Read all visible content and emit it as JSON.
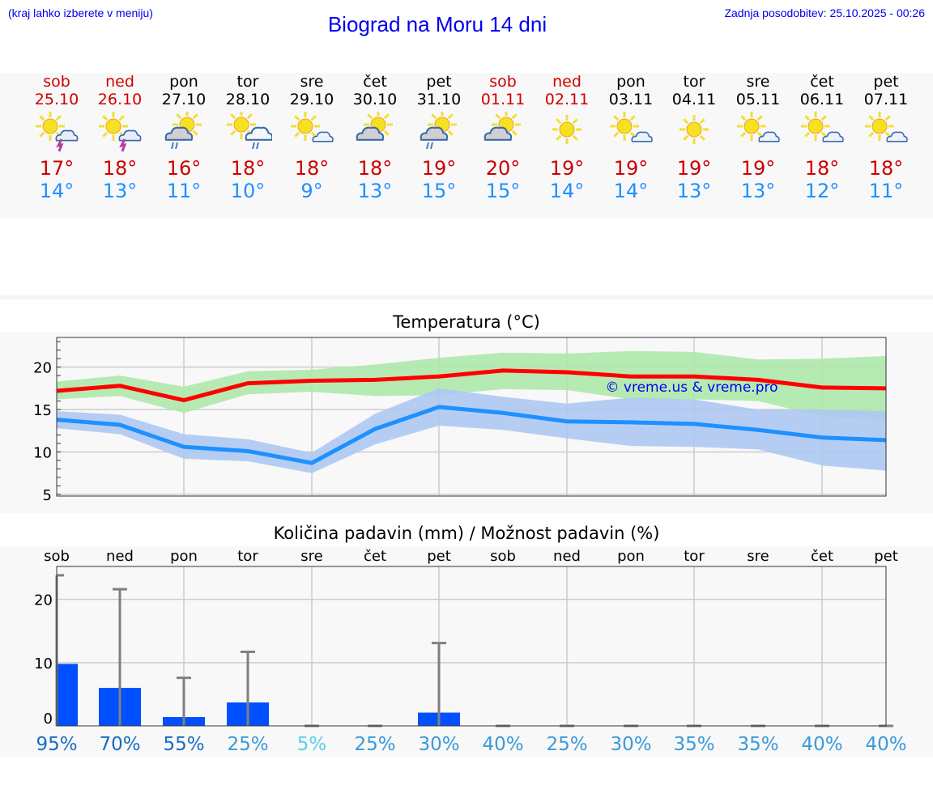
{
  "header": {
    "hint": "(kraj lahko izberete v meniju)",
    "title": "Biograd na Moru 14 dni",
    "updated": "Zadnja posodobitev: 25.10.2025 - 00:26"
  },
  "days": [
    {
      "name": "sob",
      "date": "25.10",
      "weekend": true,
      "icon": "sun-thunder-icon",
      "max": "17°",
      "min": "14°"
    },
    {
      "name": "ned",
      "date": "26.10",
      "weekend": true,
      "icon": "sun-thunder-icon",
      "max": "18°",
      "min": "13°"
    },
    {
      "name": "pon",
      "date": "27.10",
      "weekend": false,
      "icon": "cloud-rain-sun-icon",
      "max": "16°",
      "min": "11°"
    },
    {
      "name": "tor",
      "date": "28.10",
      "weekend": false,
      "icon": "sun-cloud-rain-icon",
      "max": "18°",
      "min": "10°"
    },
    {
      "name": "sre",
      "date": "29.10",
      "weekend": false,
      "icon": "sun-small-cloud-icon",
      "max": "18°",
      "min": "9°"
    },
    {
      "name": "čet",
      "date": "30.10",
      "weekend": false,
      "icon": "cloud-sun-icon",
      "max": "18°",
      "min": "13°"
    },
    {
      "name": "pet",
      "date": "31.10",
      "weekend": false,
      "icon": "cloud-rain-sun-icon",
      "max": "19°",
      "min": "15°"
    },
    {
      "name": "sob",
      "date": "01.11",
      "weekend": true,
      "icon": "cloud-sun-icon",
      "max": "20°",
      "min": "15°"
    },
    {
      "name": "ned",
      "date": "02.11",
      "weekend": true,
      "icon": "sun-icon",
      "max": "19°",
      "min": "14°"
    },
    {
      "name": "pon",
      "date": "03.11",
      "weekend": false,
      "icon": "sun-small-cloud-icon",
      "max": "19°",
      "min": "14°"
    },
    {
      "name": "tor",
      "date": "04.11",
      "weekend": false,
      "icon": "sun-icon",
      "max": "19°",
      "min": "13°"
    },
    {
      "name": "sre",
      "date": "05.11",
      "weekend": false,
      "icon": "sun-small-cloud-icon",
      "max": "19°",
      "min": "13°"
    },
    {
      "name": "čet",
      "date": "06.11",
      "weekend": false,
      "icon": "sun-small-cloud-icon",
      "max": "18°",
      "min": "12°"
    },
    {
      "name": "pet",
      "date": "07.11",
      "weekend": false,
      "icon": "sun-small-cloud-icon",
      "max": "18°",
      "min": "11°"
    }
  ],
  "colors": {
    "weekend": "#d00000",
    "max": "#cc0000",
    "min": "#1e90ff",
    "bar": "#0050ff"
  },
  "chart_data": [
    {
      "type": "line",
      "title": "Temperatura (°C)",
      "ylim": [
        4.8,
        23.5
      ],
      "yticks": [
        5,
        10,
        15,
        20
      ],
      "grid": true,
      "watermark": "© vreme.us & vreme.pro",
      "series": [
        {
          "name": "max",
          "color": "#ff0000",
          "values": [
            17.2,
            17.8,
            16.1,
            18.1,
            18.4,
            18.5,
            18.9,
            19.6,
            19.4,
            18.9,
            18.9,
            18.5,
            17.6,
            17.5
          ],
          "band_upper": [
            18.3,
            19.0,
            17.7,
            19.5,
            19.7,
            20.3,
            21.1,
            21.7,
            21.6,
            21.9,
            21.8,
            20.9,
            21.0,
            21.3
          ],
          "band_lower": [
            16.2,
            16.6,
            14.6,
            16.8,
            17.1,
            16.6,
            16.7,
            17.4,
            17.3,
            16.2,
            16.2,
            16.0,
            14.2,
            13.7
          ],
          "band_color": "#aee8ab"
        },
        {
          "name": "min",
          "color": "#1e90ff",
          "values": [
            13.8,
            13.2,
            10.6,
            10.1,
            8.7,
            12.7,
            15.3,
            14.6,
            13.6,
            13.5,
            13.3,
            12.6,
            11.7,
            11.4
          ],
          "band_upper": [
            14.8,
            14.4,
            12.1,
            11.5,
            9.9,
            14.5,
            17.5,
            16.5,
            15.7,
            16.4,
            16.2,
            15.0,
            15.0,
            14.8
          ],
          "band_lower": [
            12.8,
            12.1,
            9.2,
            8.9,
            7.5,
            10.9,
            13.1,
            12.6,
            11.6,
            10.7,
            10.6,
            10.3,
            8.4,
            7.8
          ],
          "band_color": "#aec8f2"
        }
      ]
    },
    {
      "type": "bar",
      "title": "Količina padavin (mm) / Možnost padavin (%)",
      "ylim": [
        0,
        25.2
      ],
      "yticks": [
        0,
        10,
        20
      ],
      "grid": true,
      "categories": [
        "sob",
        "ned",
        "pon",
        "tor",
        "sre",
        "čet",
        "pet",
        "sob",
        "ned",
        "pon",
        "tor",
        "sre",
        "čet",
        "pet"
      ],
      "values": [
        9.8,
        6.0,
        1.4,
        3.7,
        0,
        0,
        2.1,
        0,
        0,
        0,
        0,
        0,
        0,
        0
      ],
      "error_max": [
        23.8,
        21.6,
        7.6,
        11.7,
        0,
        0,
        13.1,
        0,
        0,
        0,
        0,
        0,
        0,
        0
      ],
      "probability": [
        "95%",
        "70%",
        "55%",
        "25%",
        "5%",
        "25%",
        "30%",
        "40%",
        "25%",
        "30%",
        "35%",
        "35%",
        "40%",
        "40%"
      ],
      "probability_colors": [
        "#1a6cc0",
        "#1a6cc0",
        "#1a6cc0",
        "#3a9ad9",
        "#5ad0e8",
        "#3a9ad9",
        "#3a9ad9",
        "#3a9ad9",
        "#3a9ad9",
        "#3a9ad9",
        "#3a9ad9",
        "#3a9ad9",
        "#3a9ad9",
        "#3a9ad9"
      ]
    }
  ]
}
